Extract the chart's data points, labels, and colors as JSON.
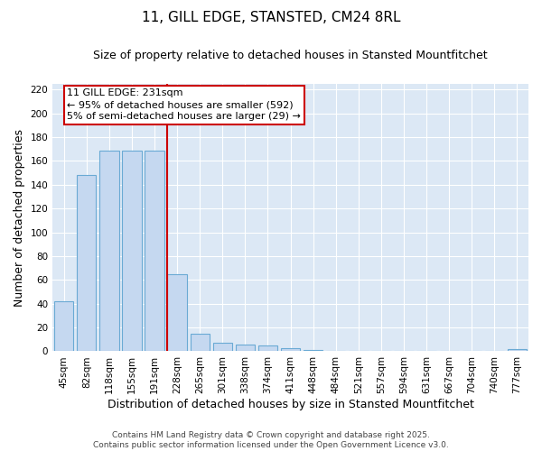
{
  "title": "11, GILL EDGE, STANSTED, CM24 8RL",
  "subtitle": "Size of property relative to detached houses in Stansted Mountfitchet",
  "xlabel": "Distribution of detached houses by size in Stansted Mountfitchet",
  "ylabel": "Number of detached properties",
  "categories": [
    "45sqm",
    "82sqm",
    "118sqm",
    "155sqm",
    "191sqm",
    "228sqm",
    "265sqm",
    "301sqm",
    "338sqm",
    "374sqm",
    "411sqm",
    "448sqm",
    "484sqm",
    "521sqm",
    "557sqm",
    "594sqm",
    "631sqm",
    "667sqm",
    "704sqm",
    "740sqm",
    "777sqm"
  ],
  "values": [
    42,
    148,
    169,
    169,
    169,
    65,
    15,
    7,
    6,
    5,
    3,
    1,
    0,
    0,
    0,
    0,
    0,
    0,
    0,
    0,
    2
  ],
  "bar_color": "#c5d8f0",
  "bar_edge_color": "#6aaad4",
  "vline_color": "#cc0000",
  "annotation_text": "11 GILL EDGE: 231sqm\n← 95% of detached houses are smaller (592)\n5% of semi-detached houses are larger (29) →",
  "annotation_box_color": "#cc0000",
  "ylim": [
    0,
    225
  ],
  "yticks": [
    0,
    20,
    40,
    60,
    80,
    100,
    120,
    140,
    160,
    180,
    200,
    220
  ],
  "plot_bg_color": "#dce8f5",
  "fig_bg_color": "#ffffff",
  "grid_color": "#ffffff",
  "footer_text": "Contains HM Land Registry data © Crown copyright and database right 2025.\nContains public sector information licensed under the Open Government Licence v3.0.",
  "title_fontsize": 11,
  "subtitle_fontsize": 9,
  "xlabel_fontsize": 9,
  "ylabel_fontsize": 9,
  "tick_fontsize": 7.5,
  "annotation_fontsize": 8,
  "footer_fontsize": 6.5
}
